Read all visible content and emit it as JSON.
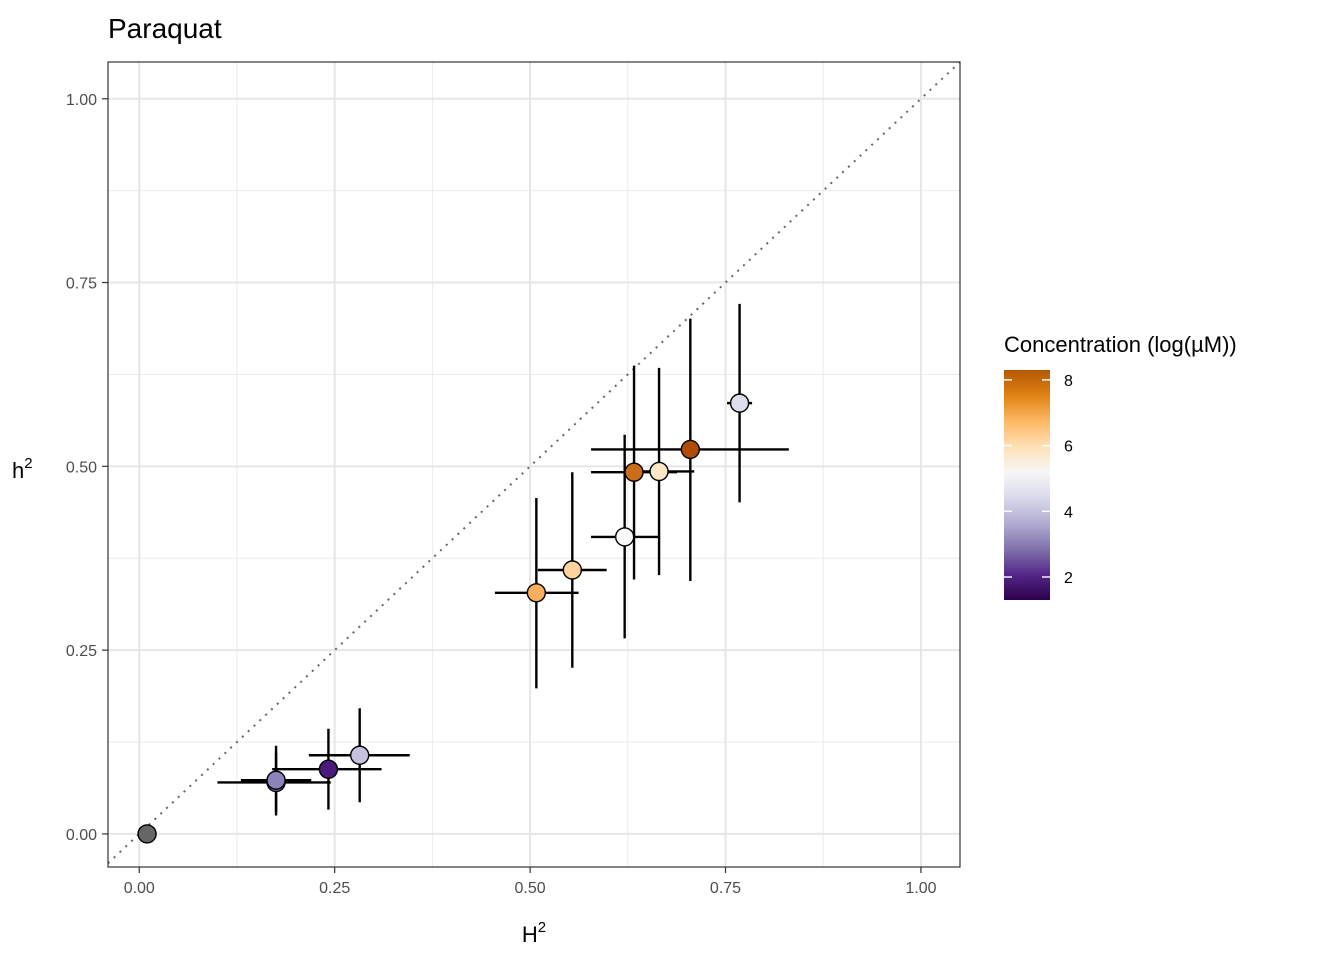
{
  "chart_data": {
    "type": "scatter",
    "title": "Paraquat",
    "xlabel": "H",
    "xlabel_sup": "2",
    "ylabel": "h",
    "ylabel_sup": "2",
    "xlim": [
      -0.04,
      1.05
    ],
    "ylim": [
      -0.045,
      1.05
    ],
    "x_ticks": [
      0.0,
      0.25,
      0.5,
      0.75,
      1.0
    ],
    "x_tick_labels": [
      "0.00",
      "0.25",
      "0.50",
      "0.75",
      "1.00"
    ],
    "y_ticks": [
      0.0,
      0.25,
      0.5,
      0.75,
      1.0
    ],
    "y_tick_labels": [
      "0.00",
      "0.25",
      "0.50",
      "0.75",
      "1.00"
    ],
    "grid": true,
    "reference_line": {
      "slope": 1,
      "intercept": 0,
      "style": "dotted",
      "color": "#666666"
    },
    "legend": {
      "title": "Concentration (log(µM))",
      "placement": "right",
      "type": "colorbar",
      "min": 1.3,
      "max": 8.3,
      "ticks": [
        2,
        4,
        6,
        8
      ],
      "tick_labels": [
        "2",
        "4",
        "6",
        "8"
      ],
      "colors": [
        "#2d004b",
        "#542788",
        "#8073ac",
        "#b2abd2",
        "#d8daeb",
        "#f7f7f7",
        "#fee0b6",
        "#fdb863",
        "#e08214",
        "#b35806"
      ]
    },
    "points": [
      {
        "x": 0.01,
        "y": 0.0,
        "xerr": [
          0.01,
          0.01
        ],
        "yerr": [
          0.0,
          0.0
        ],
        "color": "#666666"
      },
      {
        "x": 0.175,
        "y": 0.07,
        "xerr": [
          0.1,
          0.245
        ],
        "yerr": [
          0.025,
          0.12
        ],
        "color": "#8e82bd"
      },
      {
        "x": 0.175,
        "y": 0.073,
        "xerr": [
          0.13,
          0.22
        ],
        "yerr": [
          0.03,
          0.11
        ],
        "color": "#8e82bd"
      },
      {
        "x": 0.242,
        "y": 0.088,
        "xerr": [
          0.17,
          0.31
        ],
        "yerr": [
          0.033,
          0.143
        ],
        "color": "#4b1a7d"
      },
      {
        "x": 0.282,
        "y": 0.107,
        "xerr": [
          0.217,
          0.346
        ],
        "yerr": [
          0.043,
          0.171
        ],
        "color": "#c6c1df"
      },
      {
        "x": 0.508,
        "y": 0.328,
        "xerr": [
          0.455,
          0.562
        ],
        "yerr": [
          0.198,
          0.457
        ],
        "color": "#fbae5c"
      },
      {
        "x": 0.554,
        "y": 0.359,
        "xerr": [
          0.51,
          0.598
        ],
        "yerr": [
          0.226,
          0.492
        ],
        "color": "#fcd39c"
      },
      {
        "x": 0.621,
        "y": 0.404,
        "xerr": [
          0.578,
          0.664
        ],
        "yerr": [
          0.266,
          0.543
        ],
        "color": "#fbfbfb"
      },
      {
        "x": 0.633,
        "y": 0.492,
        "xerr": [
          0.578,
          0.688
        ],
        "yerr": [
          0.346,
          0.637
        ],
        "color": "#cc6e19"
      },
      {
        "x": 0.665,
        "y": 0.493,
        "xerr": [
          0.62,
          0.71
        ],
        "yerr": [
          0.352,
          0.634
        ],
        "color": "#fde7c7"
      },
      {
        "x": 0.705,
        "y": 0.523,
        "xerr": [
          0.578,
          0.831
        ],
        "yerr": [
          0.344,
          0.701
        ],
        "color": "#b04c0b"
      },
      {
        "x": 0.768,
        "y": 0.586,
        "xerr": [
          0.752,
          0.784
        ],
        "yerr": [
          0.451,
          0.721
        ],
        "color": "#dcdeec"
      }
    ]
  }
}
